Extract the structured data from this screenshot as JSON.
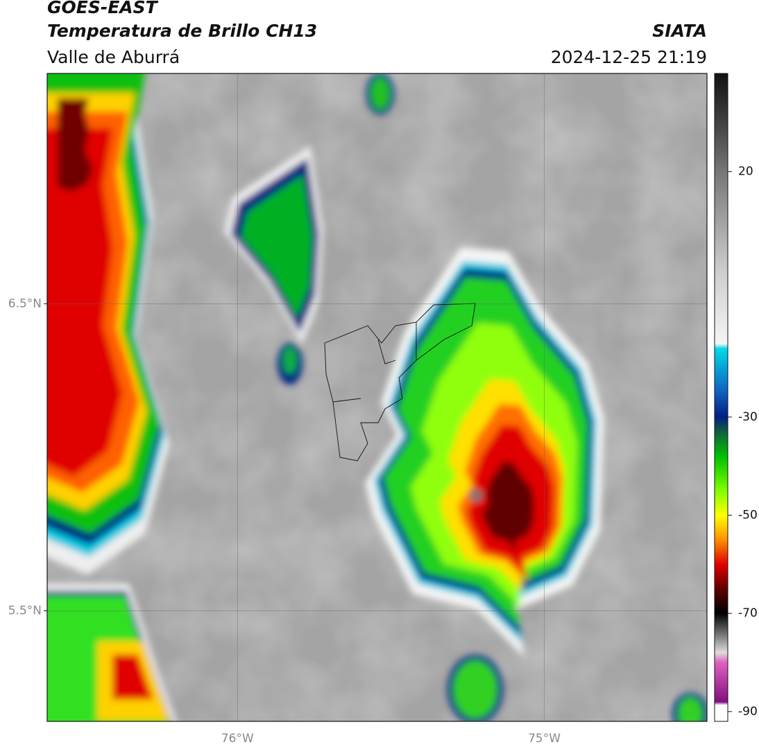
{
  "header": {
    "title": "GOES-EAST",
    "subtitle": "Temperatura de Brillo CH13",
    "region": "Valle de Aburrá",
    "source": "SIATA",
    "timestamp": "2024-12-25 21:19"
  },
  "map": {
    "xlim": [
      -76.62,
      -74.47
    ],
    "ylim": [
      5.14,
      7.25
    ],
    "xticks": [
      {
        "value": -76,
        "label": "76°W"
      },
      {
        "value": -75,
        "label": "75°W"
      }
    ],
    "yticks": [
      {
        "value": 5.5,
        "label": "5.5°N"
      },
      {
        "value": 6.5,
        "label": "6.5°N"
      }
    ],
    "grid": true
  },
  "colorbar": {
    "lim": [
      -92,
      40
    ],
    "ticks": [
      -90,
      -70,
      -50,
      -30,
      20
    ]
  }
}
